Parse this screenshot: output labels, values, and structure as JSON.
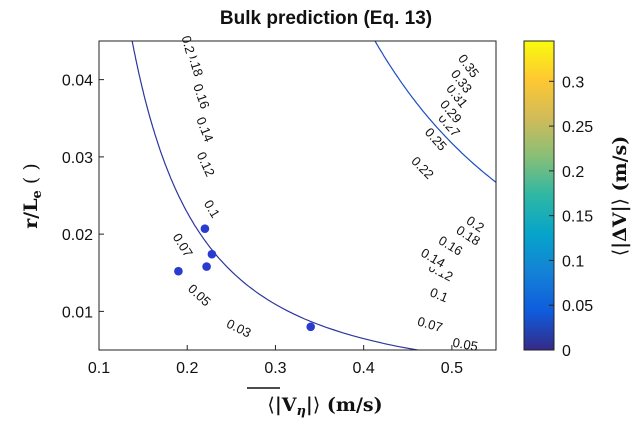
{
  "chart_data": {
    "type": "contour",
    "title": "Bulk prediction (Eq. 13)",
    "xlabel": "⟨|V̄η|⟩ (m/s)",
    "ylabel": "r/Le ()",
    "colorbar_label": "⟨|ΔV̄|⟩ (m/s)",
    "xlim": [
      0.1,
      0.55
    ],
    "ylim": [
      0.005,
      0.045
    ],
    "clim": [
      0,
      0.345
    ],
    "x_ticks": [
      0.1,
      0.2,
      0.3,
      0.4,
      0.5
    ],
    "x_tick_labels": [
      "0.1",
      "0.2",
      "0.3",
      "0.4",
      "0.5"
    ],
    "y_ticks": [
      0.01,
      0.02,
      0.03,
      0.04
    ],
    "y_tick_labels": [
      "0.01",
      "0.02",
      "0.03",
      "0.04"
    ],
    "colorbar_ticks": [
      0,
      0.05,
      0.1,
      0.15,
      0.2,
      0.25,
      0.3
    ],
    "colorbar_tick_labels": [
      "0",
      "0.05",
      "0.1",
      "0.15",
      "0.2",
      "0.25",
      "0.3"
    ],
    "colormap": "parula",
    "colormap_stops": [
      "#352a87",
      "#0f5cdd",
      "#1481d6",
      "#06a4ca",
      "#2eb7a4",
      "#87bf77",
      "#d1bb59",
      "#fec832",
      "#f9fb0e"
    ],
    "model": "z = 0.4 * x * y^0.55",
    "contour_levels": [
      0.01,
      0.03,
      0.05,
      0.07,
      0.1,
      0.12,
      0.14,
      0.16,
      0.18,
      0.2,
      0.22,
      0.25,
      0.27,
      0.29,
      0.31,
      0.33,
      0.35
    ],
    "contour_labels": [
      {
        "text": "0.03",
        "x": 0.258,
        "y": 0.0077
      },
      {
        "text": "0.05",
        "x": 0.213,
        "y": 0.012
      },
      {
        "text": "0.07",
        "x": 0.194,
        "y": 0.0185
      },
      {
        "text": "0.1",
        "x": 0.227,
        "y": 0.0232
      },
      {
        "text": "0.12",
        "x": 0.22,
        "y": 0.029
      },
      {
        "text": "0.14",
        "x": 0.219,
        "y": 0.0335
      },
      {
        "text": "0.16",
        "x": 0.215,
        "y": 0.0378
      },
      {
        "text": "0.18",
        "x": 0.208,
        "y": 0.042
      },
      {
        "text": "0.2",
        "x": 0.2,
        "y": 0.0445
      },
      {
        "text": "0.05",
        "x": 0.515,
        "y": 0.0056
      },
      {
        "text": "0.07",
        "x": 0.475,
        "y": 0.0082
      },
      {
        "text": "0.1",
        "x": 0.485,
        "y": 0.012
      },
      {
        "text": "0.12",
        "x": 0.487,
        "y": 0.015
      },
      {
        "text": "0.14",
        "x": 0.478,
        "y": 0.0168
      },
      {
        "text": "0.16",
        "x": 0.498,
        "y": 0.0184
      },
      {
        "text": "0.18",
        "x": 0.518,
        "y": 0.0197
      },
      {
        "text": "0.2",
        "x": 0.526,
        "y": 0.0212
      },
      {
        "text": "0.22",
        "x": 0.466,
        "y": 0.0285
      },
      {
        "text": "0.25",
        "x": 0.481,
        "y": 0.0322
      },
      {
        "text": "0.27",
        "x": 0.496,
        "y": 0.034
      },
      {
        "text": "0.29",
        "x": 0.498,
        "y": 0.0358
      },
      {
        "text": "0.31",
        "x": 0.505,
        "y": 0.0378
      },
      {
        "text": "0.33",
        "x": 0.51,
        "y": 0.0397
      },
      {
        "text": "0.35",
        "x": 0.518,
        "y": 0.0417
      }
    ],
    "points": [
      {
        "x": 0.19,
        "y": 0.0152
      },
      {
        "x": 0.22,
        "y": 0.0207
      },
      {
        "x": 0.222,
        "y": 0.0158
      },
      {
        "x": 0.228,
        "y": 0.0174
      },
      {
        "x": 0.34,
        "y": 0.008
      }
    ],
    "point_color": "#2a3bd0"
  }
}
